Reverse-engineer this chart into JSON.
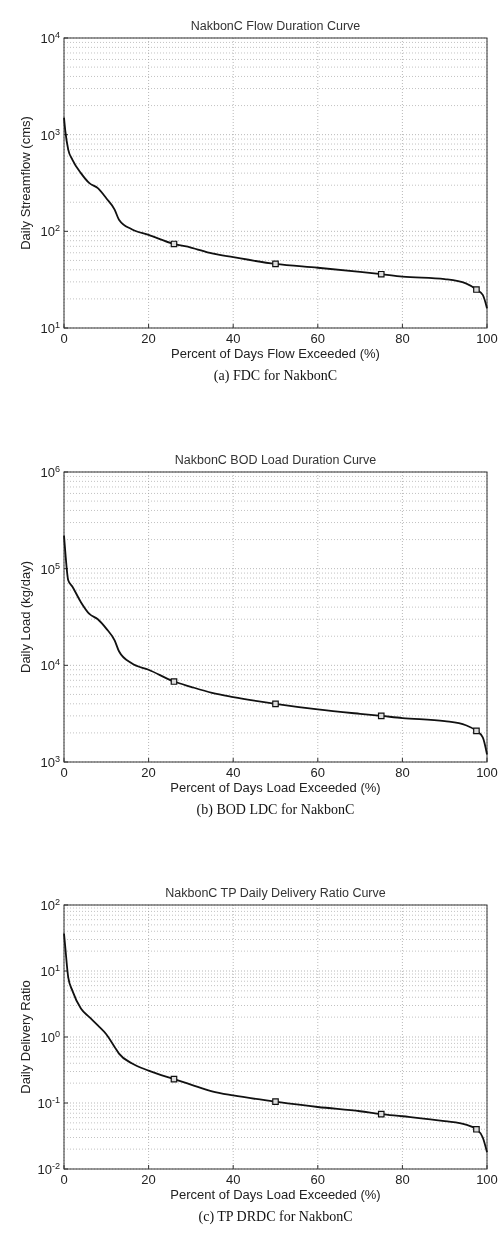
{
  "chart_data": [
    {
      "type": "line",
      "title": "NakbonC Flow Duration Curve",
      "xlabel": "Percent of Days Flow Exceeded (%)",
      "ylabel": "Daily Streamflow (cms)",
      "annotations": [
        "(a)  FDC  for  NakbonC"
      ],
      "log": "y",
      "grid": true,
      "xlim": [
        0,
        100
      ],
      "xticks": [
        0,
        20,
        40,
        60,
        80,
        100
      ],
      "ylim": [
        10,
        10000
      ],
      "yticks": [
        {
          "value": 10,
          "label": "10$^{1}$"
        },
        {
          "value": 100,
          "label": "10$^{2}$"
        },
        {
          "value": 1000,
          "label": "10$^{3}$"
        },
        {
          "value": 10000,
          "label": "10$^{4}$"
        }
      ],
      "series": [
        {
          "color": "#111111",
          "marker": "none",
          "x": [
            0,
            0.3,
            1,
            2,
            4,
            6,
            8,
            10,
            12,
            13,
            16,
            20,
            26,
            30,
            35,
            40,
            50,
            60,
            70,
            75,
            80,
            90,
            95,
            97.5,
            99,
            100
          ],
          "values": [
            1500,
            1100,
            700,
            550,
            400,
            315,
            280,
            220,
            167,
            132,
            105,
            92,
            74,
            68,
            59,
            54,
            46,
            42,
            38,
            36,
            34,
            32,
            29,
            25,
            22,
            16
          ]
        },
        {
          "type": "scatter",
          "color": "#111111",
          "marker": "square",
          "x": [
            26,
            50,
            75,
            97.5
          ],
          "values": [
            74,
            46,
            36,
            25
          ]
        }
      ]
    },
    {
      "type": "line",
      "title": "NakbonC BOD Load Duration Curve",
      "xlabel": "Percent of Days Load Exceeded (%)",
      "ylabel": "Daily Load (kg/day)",
      "annotations": [
        "(b)  BOD  LDC  for  NakbonC"
      ],
      "log": "y",
      "grid": true,
      "xlim": [
        0,
        100
      ],
      "xticks": [
        0,
        20,
        40,
        60,
        80,
        100
      ],
      "ylim": [
        1000,
        1000000
      ],
      "yticks": [
        {
          "value": 1000,
          "label": "10$^{3}$"
        },
        {
          "value": 10000,
          "label": "10$^{4}$"
        },
        {
          "value": 100000,
          "label": "10$^{5}$"
        },
        {
          "value": 1000000,
          "label": "10$^{6}$"
        }
      ],
      "series": [
        {
          "color": "#111111",
          "marker": "none",
          "x": [
            0,
            0.3,
            1,
            2,
            4,
            6,
            8,
            10,
            12,
            13,
            16,
            20,
            26,
            30,
            35,
            40,
            50,
            60,
            70,
            75,
            80,
            90,
            95,
            97.5,
            99,
            100
          ],
          "values": [
            220000,
            150000,
            76000,
            65000,
            45000,
            34000,
            30000,
            24000,
            18000,
            14000,
            10500,
            9000,
            6800,
            6000,
            5200,
            4700,
            4000,
            3500,
            3150,
            3000,
            2850,
            2650,
            2400,
            2100,
            1800,
            1200
          ]
        },
        {
          "type": "scatter",
          "color": "#111111",
          "marker": "square",
          "x": [
            26,
            50,
            75,
            97.5
          ],
          "values": [
            6800,
            4000,
            3000,
            2100
          ]
        }
      ]
    },
    {
      "type": "line",
      "title": "NakbonC TP Daily Delivery Ratio Curve",
      "xlabel": "Percent of Days Load Exceeded (%)",
      "ylabel": "Daily Delivery Ratio",
      "annotations": [
        "(c)  TP  DRDC  for  NakbonC"
      ],
      "log": "y",
      "grid": true,
      "xlim": [
        0,
        100
      ],
      "xticks": [
        0,
        20,
        40,
        60,
        80,
        100
      ],
      "ylim": [
        0.01,
        100
      ],
      "yticks": [
        {
          "value": 0.01,
          "label": "10$^{-2}$"
        },
        {
          "value": 0.1,
          "label": "10$^{-1}$"
        },
        {
          "value": 1,
          "label": "10$^{0}$"
        },
        {
          "value": 10,
          "label": "10$^{1}$"
        },
        {
          "value": 100,
          "label": "10$^{2}$"
        }
      ],
      "series": [
        {
          "color": "#111111",
          "marker": "none",
          "x": [
            0,
            0.3,
            1,
            2,
            4,
            6,
            8,
            10,
            12,
            13,
            16,
            20,
            26,
            30,
            35,
            40,
            50,
            60,
            70,
            75,
            80,
            90,
            95,
            97.5,
            99,
            100
          ],
          "values": [
            37,
            23,
            8,
            5,
            2.7,
            2,
            1.5,
            1.1,
            0.7,
            0.56,
            0.4,
            0.31,
            0.23,
            0.19,
            0.15,
            0.13,
            0.105,
            0.087,
            0.075,
            0.068,
            0.063,
            0.053,
            0.047,
            0.04,
            0.03,
            0.018
          ]
        },
        {
          "type": "scatter",
          "color": "#111111",
          "marker": "square",
          "x": [
            26,
            50,
            75,
            97.5
          ],
          "values": [
            0.23,
            0.105,
            0.068,
            0.04
          ]
        }
      ]
    }
  ]
}
